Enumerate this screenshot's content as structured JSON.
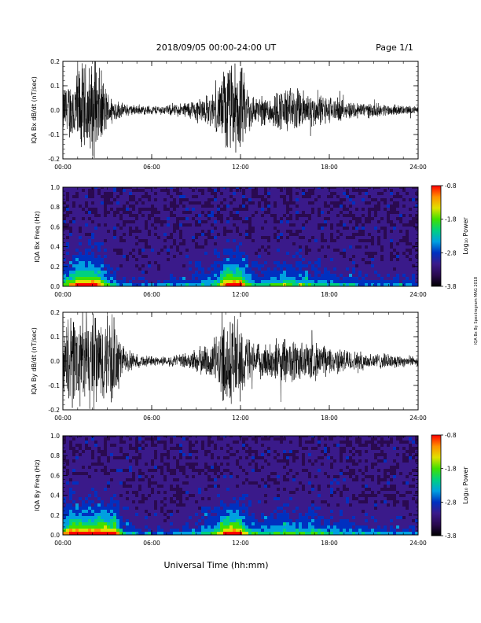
{
  "header": {
    "title": "2018/09/05   00:00-24:00 UT",
    "page": "Page 1/1"
  },
  "side_text": "IQA Bx By Spectrogram MAG 2018",
  "colors": {
    "trace": "#000000",
    "frame": "#000000",
    "colorbar": [
      "#000000",
      "#2a0a50",
      "#3a1a8a",
      "#0030c0",
      "#00a0e0",
      "#00d080",
      "#40e000",
      "#e0e000",
      "#ff9000",
      "#ff0000"
    ]
  },
  "chart_data": [
    {
      "type": "line",
      "ylabel": "IQA Bx dB/dt (nT/sec)",
      "xlim": [
        0,
        24
      ],
      "ylim": [
        -0.2,
        0.2
      ],
      "xticks": [
        "00:00",
        "06:00",
        "12:00",
        "18:00",
        "24:00"
      ],
      "yticks": [
        "-0.2",
        "-0.1",
        "0.0",
        "0.1",
        "0.2"
      ],
      "envelope": {
        "hours": [
          0,
          0.5,
          1.0,
          1.5,
          2.0,
          2.5,
          3.0,
          3.5,
          4.0,
          5.0,
          6.0,
          7.0,
          8.0,
          9.0,
          10.0,
          10.5,
          11.0,
          11.5,
          12.0,
          12.5,
          13.0,
          14.0,
          15.0,
          16.0,
          17.0,
          18.0,
          19.0,
          20.0,
          21.0,
          22.0,
          23.0,
          24.0
        ],
        "amplitude": [
          0.1,
          0.13,
          0.2,
          0.2,
          0.2,
          0.18,
          0.08,
          0.05,
          0.03,
          0.02,
          0.02,
          0.02,
          0.03,
          0.05,
          0.07,
          0.1,
          0.2,
          0.2,
          0.2,
          0.1,
          0.06,
          0.07,
          0.1,
          0.09,
          0.07,
          0.06,
          0.04,
          0.035,
          0.03,
          0.025,
          0.02,
          0.015
        ]
      }
    },
    {
      "type": "heatmap",
      "ylabel": "IQA Bx Freq (Hz)",
      "xlim": [
        0,
        24
      ],
      "ylim": [
        0,
        1.0
      ],
      "xticks": [
        "00:00",
        "06:00",
        "12:00",
        "18:00",
        "24:00"
      ],
      "yticks": [
        "0.0",
        "0.2",
        "0.4",
        "0.6",
        "0.8",
        "1.0"
      ],
      "colorbar": {
        "label": "Log₁₀ Power",
        "ticks": [
          "-0.8",
          "-1.8",
          "-2.8",
          "-3.8"
        ],
        "range": [
          -3.8,
          -0.8
        ]
      }
    },
    {
      "type": "line",
      "ylabel": "IQA By dB/dt (nT/sec)",
      "xlim": [
        0,
        24
      ],
      "ylim": [
        -0.2,
        0.2
      ],
      "xticks": [
        "00:00",
        "06:00",
        "12:00",
        "18:00",
        "24:00"
      ],
      "yticks": [
        "-0.2",
        "-0.1",
        "0.0",
        "0.1",
        "0.2"
      ],
      "envelope": {
        "hours": [
          0,
          0.5,
          1.0,
          1.5,
          2.0,
          2.5,
          3.0,
          3.5,
          4.0,
          5.0,
          6.0,
          7.0,
          8.0,
          9.0,
          10.0,
          10.5,
          11.0,
          11.5,
          12.0,
          12.5,
          13.0,
          14.0,
          15.0,
          16.0,
          17.0,
          18.0,
          19.0,
          20.0,
          21.0,
          22.0,
          23.0,
          24.0
        ],
        "amplitude": [
          0.12,
          0.2,
          0.2,
          0.2,
          0.2,
          0.2,
          0.2,
          0.2,
          0.06,
          0.03,
          0.02,
          0.02,
          0.03,
          0.05,
          0.08,
          0.12,
          0.2,
          0.2,
          0.2,
          0.1,
          0.07,
          0.08,
          0.1,
          0.09,
          0.08,
          0.06,
          0.05,
          0.04,
          0.035,
          0.03,
          0.025,
          0.02
        ]
      }
    },
    {
      "type": "heatmap",
      "ylabel": "IQA By Freq (Hz)",
      "xlim": [
        0,
        24
      ],
      "ylim": [
        0,
        1.0
      ],
      "xticks": [
        "00:00",
        "06:00",
        "12:00",
        "18:00",
        "24:00"
      ],
      "yticks": [
        "0.0",
        "0.2",
        "0.4",
        "0.6",
        "0.8",
        "1.0"
      ],
      "colorbar": {
        "label": "Log₁₀ Power",
        "ticks": [
          "-0.8",
          "-1.8",
          "-2.8",
          "-3.8"
        ],
        "range": [
          -3.8,
          -0.8
        ]
      }
    }
  ],
  "xlabel": "Universal Time (hh:mm)"
}
